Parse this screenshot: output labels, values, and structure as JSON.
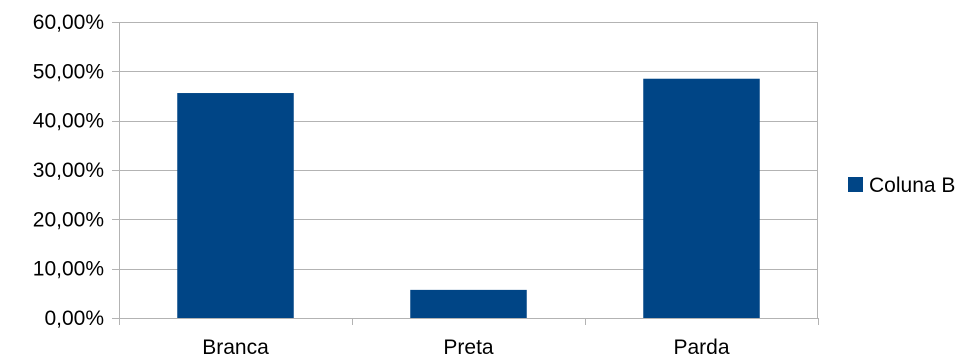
{
  "chart_data": {
    "type": "bar",
    "categories": [
      "Branca",
      "Preta",
      "Parda"
    ],
    "series": [
      {
        "name": "Coluna B",
        "values": [
          45.6,
          5.7,
          48.5
        ],
        "color": "#004586"
      }
    ],
    "ylim": [
      0,
      60
    ],
    "yticks": [
      0,
      10,
      20,
      30,
      40,
      50,
      60
    ],
    "ytick_labels": [
      "0,00%",
      "10,00%",
      "20,00%",
      "30,00%",
      "40,00%",
      "50,00%",
      "60,00%"
    ],
    "grid": true,
    "legend_position": "right",
    "colors": {
      "bar": "#004586",
      "grid": "#b3b3b3",
      "axis": "#b3b3b3"
    }
  }
}
